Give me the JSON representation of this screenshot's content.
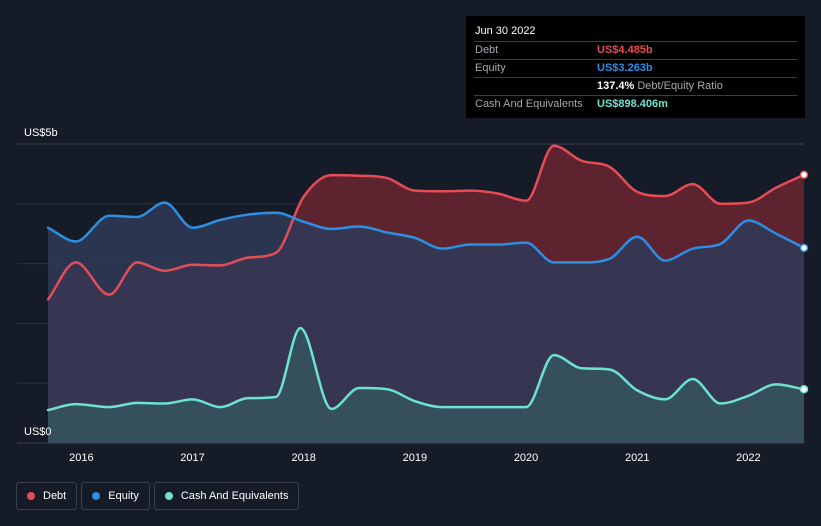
{
  "tooltip": {
    "date": "Jun 30 2022",
    "debt_label": "Debt",
    "debt_value": "US$4.485b",
    "equity_label": "Equity",
    "equity_value": "US$3.263b",
    "ratio_value": "137.4%",
    "ratio_label": "Debt/Equity Ratio",
    "cash_label": "Cash And Equivalents",
    "cash_value": "US$898.406m"
  },
  "legend": [
    {
      "label": "Debt",
      "color": "#e64c57"
    },
    {
      "label": "Equity",
      "color": "#2d8ee4"
    },
    {
      "label": "Cash And Equivalents",
      "color": "#6de2d0"
    }
  ],
  "colors": {
    "background": "#151b27",
    "debt": "#e64c57",
    "equity": "#2d8ee4",
    "cash": "#6de2d0"
  },
  "chart_data": {
    "type": "area",
    "y_top_label": "US$5b",
    "y_bottom_label": "US$0",
    "ylim": [
      0,
      5
    ],
    "y_unit": "US$b",
    "xlim": [
      2015.7,
      2022.5
    ],
    "x_tick_labels": [
      "2016",
      "2017",
      "2018",
      "2019",
      "2020",
      "2021",
      "2022"
    ],
    "x_tick_values": [
      2016,
      2017,
      2018,
      2019,
      2020,
      2021,
      2022
    ],
    "grid": true,
    "legend_position": "bottom-left",
    "series": [
      {
        "name": "Debt",
        "x": [
          2015.7,
          2015.95,
          2016.25,
          2016.5,
          2016.75,
          2017.0,
          2017.25,
          2017.5,
          2017.75,
          2018.0,
          2018.25,
          2018.5,
          2018.75,
          2019.0,
          2019.25,
          2019.5,
          2019.75,
          2020.0,
          2020.25,
          2020.5,
          2020.75,
          2021.0,
          2021.25,
          2021.5,
          2021.75,
          2022.0,
          2022.25,
          2022.5
        ],
        "values": [
          2.4,
          3.02,
          2.48,
          3.02,
          2.88,
          2.98,
          2.97,
          3.1,
          3.18,
          4.12,
          4.48,
          4.47,
          4.43,
          4.22,
          4.21,
          4.22,
          4.17,
          4.05,
          4.97,
          4.72,
          4.62,
          4.2,
          4.13,
          4.33,
          4.0,
          4.02,
          4.27,
          4.485
        ]
      },
      {
        "name": "Equity",
        "x": [
          2015.7,
          2015.95,
          2016.25,
          2016.5,
          2016.75,
          2017.0,
          2017.25,
          2017.5,
          2017.75,
          2018.0,
          2018.25,
          2018.5,
          2018.75,
          2019.0,
          2019.25,
          2019.5,
          2019.75,
          2020.0,
          2020.25,
          2020.5,
          2020.75,
          2021.0,
          2021.25,
          2021.5,
          2021.75,
          2022.0,
          2022.25,
          2022.5
        ],
        "values": [
          3.6,
          3.37,
          3.8,
          3.78,
          4.02,
          3.6,
          3.73,
          3.82,
          3.85,
          3.7,
          3.58,
          3.62,
          3.52,
          3.43,
          3.25,
          3.32,
          3.32,
          3.35,
          3.02,
          3.02,
          3.08,
          3.45,
          3.05,
          3.25,
          3.33,
          3.72,
          3.5,
          3.263
        ]
      },
      {
        "name": "Cash And Equivalents",
        "x": [
          2015.7,
          2015.95,
          2016.25,
          2016.5,
          2016.75,
          2017.0,
          2017.25,
          2017.5,
          2017.75,
          2017.97,
          2018.25,
          2018.5,
          2018.75,
          2019.0,
          2019.25,
          2019.5,
          2019.75,
          2020.0,
          2020.25,
          2020.5,
          2020.75,
          2021.0,
          2021.25,
          2021.5,
          2021.75,
          2022.0,
          2022.25,
          2022.5
        ],
        "values": [
          0.55,
          0.65,
          0.6,
          0.67,
          0.66,
          0.73,
          0.6,
          0.75,
          0.77,
          1.92,
          0.57,
          0.92,
          0.9,
          0.7,
          0.6,
          0.6,
          0.6,
          0.6,
          1.47,
          1.25,
          1.23,
          0.88,
          0.73,
          1.07,
          0.66,
          0.79,
          0.98,
          0.898
        ]
      }
    ]
  }
}
